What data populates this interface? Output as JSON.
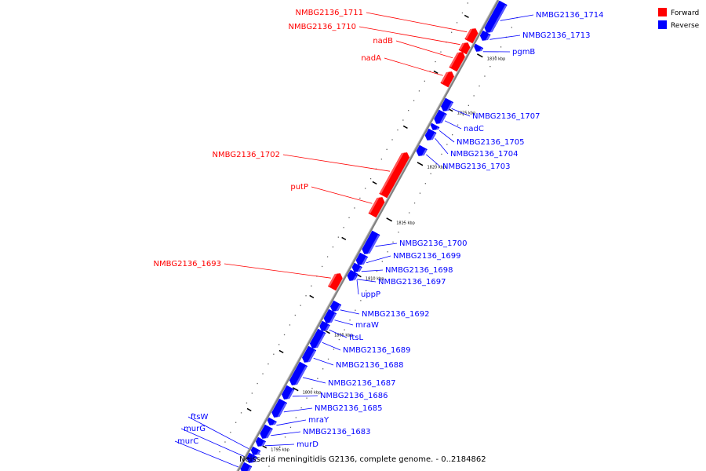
{
  "colors": {
    "forward": "#ff0000",
    "reverse": "#0000ff",
    "backbone": "#808080",
    "tick": "#000000",
    "background": "#ffffff"
  },
  "legend": {
    "forward_label": "Forward",
    "reverse_label": "Reverse"
  },
  "caption": "Neisseria meningitidis G2136, complete genome. - 0..2184862",
  "ticks": [
    {
      "label": "1830 kbp"
    },
    {
      "label": "1825 kbp"
    },
    {
      "label": "1820 kbp"
    },
    {
      "label": "1815 kbp"
    },
    {
      "label": "1810 kbp"
    },
    {
      "label": "1805 kbp"
    },
    {
      "label": "1800 kbp"
    },
    {
      "label": "1795 kbp"
    }
  ],
  "features": [
    {
      "name": "NMBG2136_1714",
      "strand": "reverse"
    },
    {
      "name": "NMBG2136_1713",
      "strand": "reverse"
    },
    {
      "name": "pgmB",
      "strand": "reverse"
    },
    {
      "name": "NMBG2136_1711",
      "strand": "forward"
    },
    {
      "name": "NMBG2136_1710",
      "strand": "forward"
    },
    {
      "name": "nadB",
      "strand": "forward"
    },
    {
      "name": "nadA",
      "strand": "forward"
    },
    {
      "name": "NMBG2136_1707",
      "strand": "reverse"
    },
    {
      "name": "nadC",
      "strand": "reverse"
    },
    {
      "name": "NMBG2136_1705",
      "strand": "reverse"
    },
    {
      "name": "NMBG2136_1704",
      "strand": "reverse"
    },
    {
      "name": "NMBG2136_1703",
      "strand": "reverse"
    },
    {
      "name": "NMBG2136_1702",
      "strand": "forward"
    },
    {
      "name": "putP",
      "strand": "forward"
    },
    {
      "name": "NMBG2136_1700",
      "strand": "reverse"
    },
    {
      "name": "NMBG2136_1699",
      "strand": "reverse"
    },
    {
      "name": "NMBG2136_1698",
      "strand": "reverse"
    },
    {
      "name": "NMBG2136_1697",
      "strand": "reverse"
    },
    {
      "name": "uppP",
      "strand": "reverse"
    },
    {
      "name": "NMBG2136_1693",
      "strand": "forward"
    },
    {
      "name": "NMBG2136_1692",
      "strand": "reverse"
    },
    {
      "name": "mraW",
      "strand": "reverse"
    },
    {
      "name": "ftsL",
      "strand": "reverse"
    },
    {
      "name": "NMBG2136_1689",
      "strand": "reverse"
    },
    {
      "name": "NMBG2136_1688",
      "strand": "reverse"
    },
    {
      "name": "NMBG2136_1687",
      "strand": "reverse"
    },
    {
      "name": "NMBG2136_1686",
      "strand": "reverse"
    },
    {
      "name": "NMBG2136_1685",
      "strand": "reverse"
    },
    {
      "name": "mraY",
      "strand": "reverse"
    },
    {
      "name": "NMBG2136_1683",
      "strand": "reverse"
    },
    {
      "name": "murD",
      "strand": "reverse"
    },
    {
      "name": "ftsW",
      "strand": "reverse"
    },
    {
      "name": "murG",
      "strand": "reverse"
    },
    {
      "name": "murC",
      "strand": "reverse"
    }
  ]
}
